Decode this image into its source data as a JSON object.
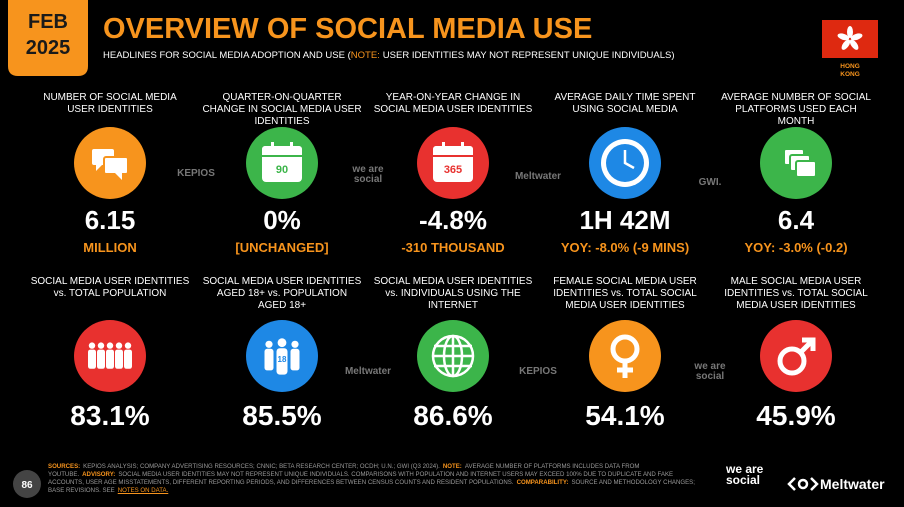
{
  "header": {
    "month": "FEB",
    "year": "2025",
    "title": "OVERVIEW OF SOCIAL MEDIA USE",
    "subtitle_before": "HEADLINES FOR SOCIAL MEDIA ADOPTION AND USE (",
    "subtitle_note": "NOTE:",
    "subtitle_after": "USER IDENTITIES MAY NOT REPRESENT UNIQUE INDIVIDUALS)",
    "flag_label": "HONG KONG"
  },
  "rows": [
    [
      {
        "label": "NUMBER OF SOCIAL MEDIA USER IDENTITIES",
        "value": "6.15",
        "sublabel": "MILLION"
      },
      {
        "label": "QUARTER-ON-QUARTER CHANGE IN SOCIAL MEDIA USER IDENTITIES",
        "value": "0%",
        "sublabel": "[UNCHANGED]",
        "icon_text": "90"
      },
      {
        "label": "YEAR-ON-YEAR CHANGE IN SOCIAL MEDIA USER IDENTITIES",
        "value": "-4.8%",
        "sublabel": "-310 THOUSAND",
        "icon_text": "365"
      },
      {
        "label": "AVERAGE DAILY TIME SPENT USING SOCIAL MEDIA",
        "value": "1H 42M",
        "sublabel": "YOY: -8.0% (-9 MINS)"
      },
      {
        "label": "AVERAGE NUMBER OF SOCIAL PLATFORMS USED EACH MONTH",
        "value": "6.4",
        "sublabel": "YOY: -3.0% (-0.2)"
      }
    ],
    [
      {
        "label": "SOCIAL MEDIA USER IDENTITIES vs. TOTAL POPULATION",
        "value": "83.1%"
      },
      {
        "label": "SOCIAL MEDIA USER IDENTITIES AGED 18+ vs. POPULATION AGED 18+",
        "value": "85.5%",
        "icon_text": "18"
      },
      {
        "label": "SOCIAL MEDIA USER IDENTITIES vs. INDIVIDUALS USING THE INTERNET",
        "value": "86.6%"
      },
      {
        "label": "FEMALE SOCIAL MEDIA USER IDENTITIES vs. TOTAL SOCIAL MEDIA USER IDENTITIES",
        "value": "54.1%"
      },
      {
        "label": "MALE SOCIAL MEDIA USER IDENTITIES vs. TOTAL SOCIAL MEDIA USER IDENTITIES",
        "value": "45.9%"
      }
    ]
  ],
  "watermarks": [
    "KEPIOS",
    "we are social",
    "Meltwater",
    "GWI.",
    "Meltwater",
    "KEPIOS",
    "we are social"
  ],
  "footer": {
    "page": "86",
    "notes": [
      {
        "label": "SOURCES:",
        "text": "KEPIOS ANALYSIS; COMPANY ADVERTISING RESOURCES; CNNIC; BETA RESEARCH CENTER; OCDH; U.N.; GWI (Q3 2024)."
      },
      {
        "label": "NOTE:",
        "text": "AVERAGE NUMBER OF PLATFORMS INCLUDES DATA FROM YOUTUBE."
      },
      {
        "label": "ADVISORY:",
        "text": "SOCIAL MEDIA USER IDENTITIES MAY NOT REPRESENT UNIQUE INDIVIDUALS. COMPARISONS WITH POPULATION AND INTERNET USERS MAY EXCEED 100% DUE TO DUPLICATE AND FAKE ACCOUNTS, USER AGE MISSTATEMENTS, DIFFERENT REPORTING PERIODS, AND DIFFERENCES BETWEEN CENSUS COUNTS AND RESIDENT POPULATIONS."
      },
      {
        "label": "COMPARABILITY:",
        "text": "SOURCE AND METHODOLOGY CHANGES; BASE REVISIONS. SEE",
        "link": "NOTES ON DATA."
      }
    ],
    "logo_1": "we are social",
    "logo_2": "Meltwater"
  }
}
